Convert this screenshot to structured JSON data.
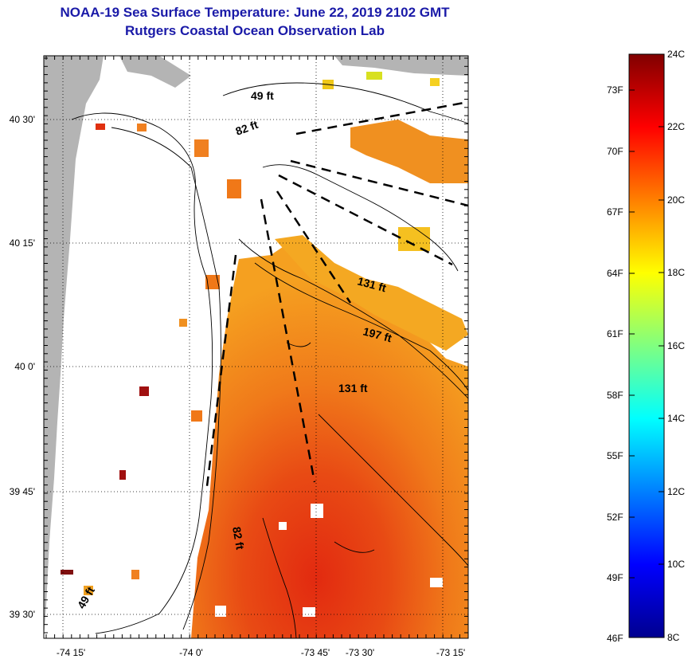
{
  "title": {
    "line1": "NOAA-19 Sea Surface Temperature:  June 22, 2019 2102 GMT",
    "line2": "Rutgers Coastal Ocean Observation Lab"
  },
  "map": {
    "lat_ticks": [
      "40 30'",
      "40 15'",
      "40 0'",
      "39 45'",
      "39 30'"
    ],
    "lon_ticks": [
      "-74 15'",
      "-74 0'",
      "-73 45'",
      "-73 30'",
      "-73 15'"
    ],
    "depth_labels": [
      "49 ft",
      "82 ft",
      "131 ft",
      "197 ft",
      "131 ft",
      "82 ft",
      "49 ft"
    ],
    "colors": {
      "land": "#b4b4b4",
      "no_data": "#ffffff",
      "warm_core": "#e83010",
      "mid": "#f07818",
      "cool_edge": "#f5b020"
    }
  },
  "colorbar": {
    "fahrenheit_labels": [
      "73F",
      "70F",
      "67F",
      "64F",
      "61F",
      "58F",
      "55F",
      "52F",
      "49F",
      "46F"
    ],
    "celsius_labels": [
      "24C",
      "22C",
      "20C",
      "18C",
      "16C",
      "14C",
      "12C",
      "10C",
      "8C"
    ],
    "colormap": "jet",
    "range_c": [
      8,
      24
    ]
  }
}
